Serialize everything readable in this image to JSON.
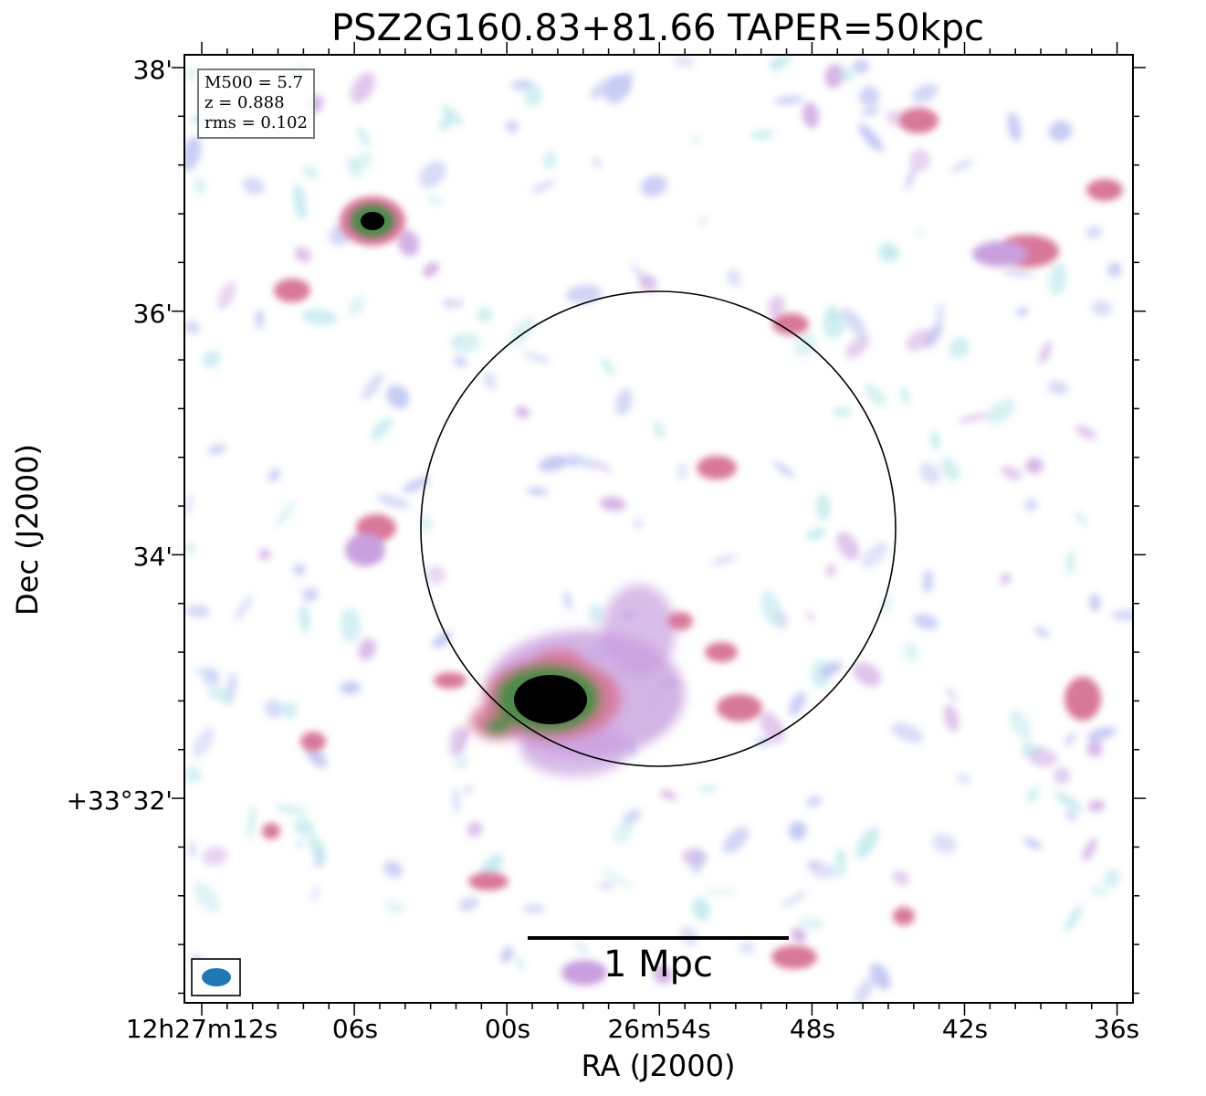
{
  "title": "PSZ2G160.83+81.66 TAPER=50kpc",
  "axes": {
    "xlabel": "RA (J2000)",
    "ylabel": "Dec (J2000)",
    "x_ticks": [
      "12h27m12s",
      "06s",
      "00s",
      "26m54s",
      "48s",
      "42s",
      "36s"
    ],
    "y_ticks": [
      "38'",
      "36'",
      "34'",
      "+33°32'"
    ]
  },
  "info": {
    "m500": "M500 = 5.7",
    "z": "z = 0.888",
    "rms": "rms = 0.102"
  },
  "scale_bar": {
    "label": "1 Mpc"
  },
  "colors": {
    "background": "#ffffff",
    "noise_cyan": "#b9e6e9",
    "noise_blue": "#b6bdf0",
    "faint_purple": "#c9a0df",
    "pink": "#d8789a",
    "green": "#4d8a4a",
    "core": "#000000",
    "beam": "#1f77b4",
    "circle": "#000000"
  }
}
